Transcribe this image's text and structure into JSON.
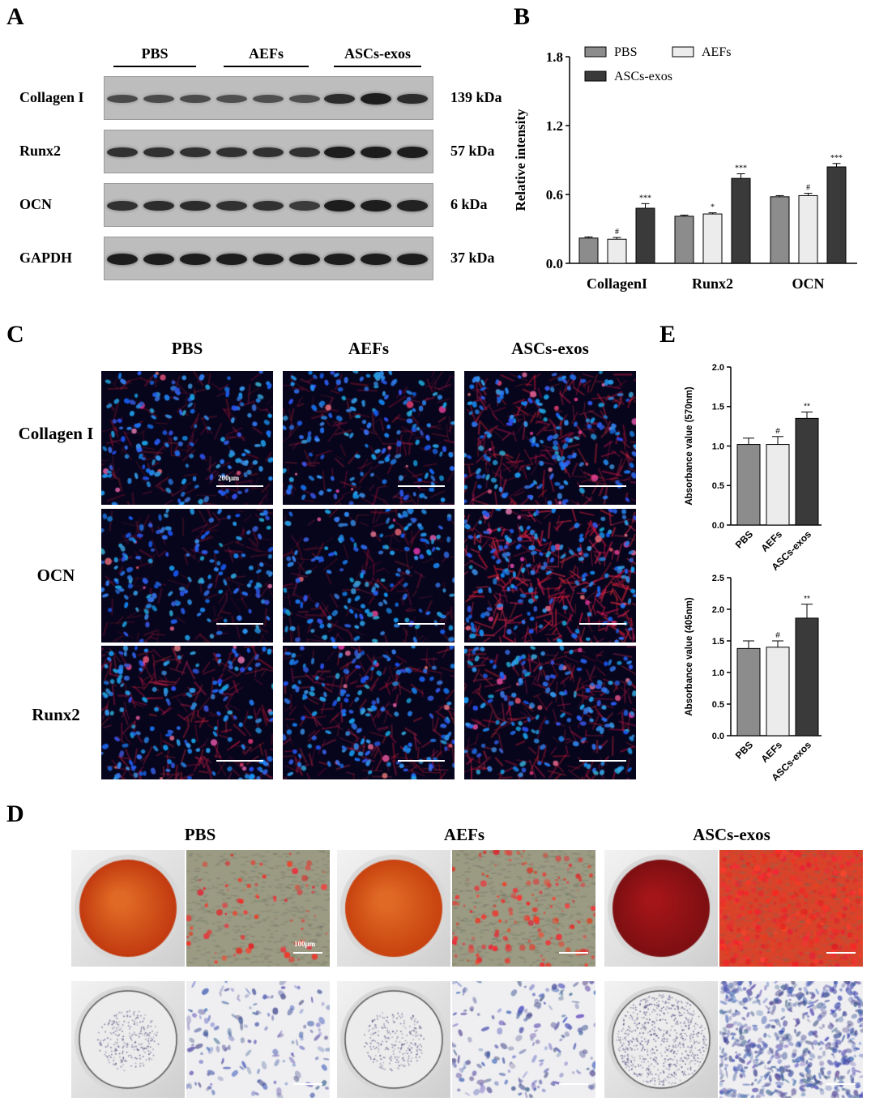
{
  "panels": {
    "a": "A",
    "b": "B",
    "c": "C",
    "d": "D",
    "e": "E"
  },
  "panelA": {
    "groups": [
      "PBS",
      "AEFs",
      "ASCs-exos"
    ],
    "rows": [
      {
        "label": "Collagen I",
        "kda": "139 kDa",
        "intensity": [
          0.55,
          0.55,
          0.55,
          0.5,
          0.5,
          0.5,
          0.85,
          1.0,
          0.85
        ]
      },
      {
        "label": "Runx2",
        "kda": "57 kDa",
        "intensity": [
          0.8,
          0.8,
          0.8,
          0.8,
          0.8,
          0.8,
          1.0,
          1.0,
          1.0
        ]
      },
      {
        "label": "OCN",
        "kda": "6 kDa",
        "intensity": [
          0.8,
          0.85,
          0.85,
          0.8,
          0.8,
          0.7,
          1.0,
          1.0,
          0.95
        ]
      },
      {
        "label": "GAPDH",
        "kda": "37 kDa",
        "intensity": [
          1,
          1,
          1,
          1,
          1,
          1,
          1,
          1,
          1
        ]
      }
    ]
  },
  "chart_data": [
    {
      "type": "bar",
      "categories": [
        "CollagenI",
        "Runx2",
        "OCN"
      ],
      "series": [
        {
          "name": "PBS",
          "values": [
            0.22,
            0.41,
            0.58
          ],
          "errors": [
            0.01,
            0.01,
            0.01
          ],
          "color": "#8c8c8c"
        },
        {
          "name": "AEFs",
          "values": [
            0.21,
            0.43,
            0.59
          ],
          "errors": [
            0.015,
            0.01,
            0.02
          ],
          "color": "#ececec"
        },
        {
          "name": "ASCs-exos",
          "values": [
            0.48,
            0.74,
            0.84
          ],
          "errors": [
            0.04,
            0.04,
            0.03
          ],
          "color": "#3a3a3a"
        }
      ],
      "annotations": [
        [
          "",
          "#",
          "***"
        ],
        [
          "",
          "*",
          "***"
        ],
        [
          "",
          "#",
          "***"
        ]
      ],
      "ylabel": "Relative intensity",
      "yticks": [
        "0.0",
        "0.6",
        "1.2",
        "1.8"
      ],
      "ylim": [
        0,
        1.8
      ],
      "legend": "top"
    },
    {
      "type": "bar",
      "categories": [
        "PBS",
        "AEFs",
        "ASCs-exos"
      ],
      "values": [
        1.02,
        1.02,
        1.35
      ],
      "errors": [
        0.08,
        0.1,
        0.08
      ],
      "colors": [
        "#8c8c8c",
        "#ececec",
        "#3a3a3a"
      ],
      "annotations": [
        "",
        "#",
        "**"
      ],
      "ylabel": "Absorbance value (570nm)",
      "yticks": [
        "0.0",
        "0.5",
        "1.0",
        "1.5",
        "2.0"
      ],
      "ylim": [
        0,
        2.0
      ]
    },
    {
      "type": "bar",
      "categories": [
        "PBS",
        "AEFs",
        "ASCs-exos"
      ],
      "values": [
        1.38,
        1.4,
        1.86
      ],
      "errors": [
        0.12,
        0.1,
        0.22
      ],
      "colors": [
        "#8c8c8c",
        "#ececec",
        "#3a3a3a"
      ],
      "annotations": [
        "",
        "#",
        "**"
      ],
      "ylabel": "Absorbance value (405nm)",
      "yticks": [
        "0.0",
        "0.5",
        "1.0",
        "1.5",
        "2.0",
        "2.5"
      ],
      "ylim": [
        0,
        2.5
      ]
    }
  ],
  "panelC": {
    "cols": [
      "PBS",
      "AEFs",
      "ASCs-exos"
    ],
    "rows": [
      "Collagen I",
      "OCN",
      "Runx2"
    ],
    "scale": "200μm",
    "redLevel": [
      [
        0.25,
        0.3,
        0.6
      ],
      [
        0.2,
        0.25,
        0.9
      ],
      [
        0.5,
        0.45,
        0.55
      ]
    ]
  },
  "panelD": {
    "cols": [
      "PBS",
      "AEFs",
      "ASCs-exos"
    ],
    "scale": "100μm"
  }
}
